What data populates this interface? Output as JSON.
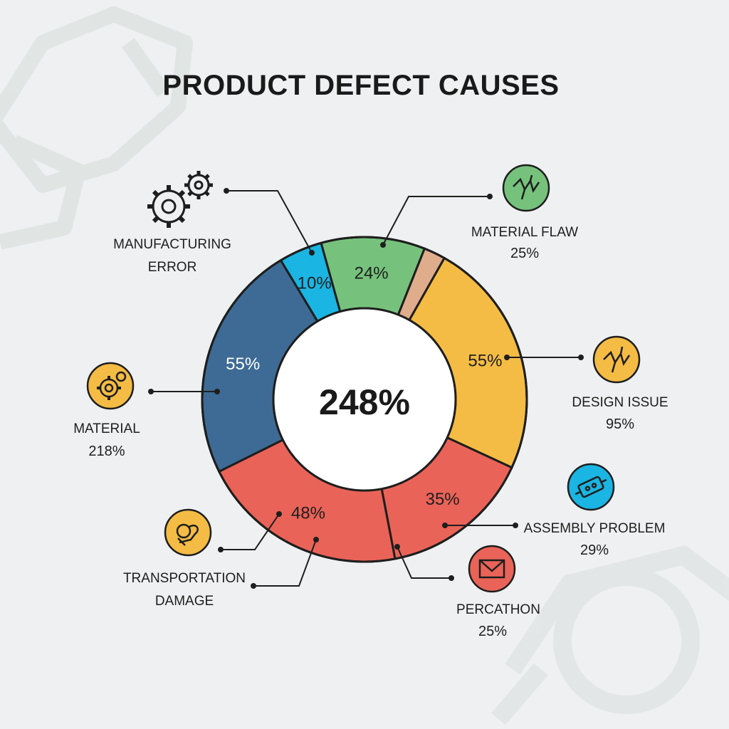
{
  "chart_data": {
    "type": "pie",
    "title": "PRODUCT DEFECT CAUSES",
    "center_label": "248%",
    "slices": [
      {
        "label": "24%",
        "value": 24,
        "color": "#76c27d"
      },
      {
        "label": "",
        "value": 5,
        "color": "#dfad8c"
      },
      {
        "label": "55%",
        "value": 55,
        "color": "#f4bc44"
      },
      {
        "label": "35%",
        "value": 35,
        "color": "#ea6358"
      },
      {
        "label": "48%",
        "value": 48,
        "color": "#ea6358"
      },
      {
        "label": "55%",
        "value": 55,
        "color": "#3e6b95"
      },
      {
        "label": "10%",
        "value": 10,
        "color": "#1ab5e2"
      }
    ],
    "callouts": [
      {
        "name": "MANUFACTURING ERROR",
        "lines": [
          "MANUFACTURING",
          "ERROR"
        ],
        "value": "",
        "icon": "gears-icon"
      },
      {
        "name": "MATERIAL FLAW",
        "lines": [
          "MATERIAL FLAW"
        ],
        "value": "25%",
        "icon": "crack-icon",
        "color": "#76c27d"
      },
      {
        "name": "DESIGN ISSUE",
        "lines": [
          "DESIGN ISSUE"
        ],
        "value": "95%",
        "icon": "crack-icon",
        "color": "#f4bc44"
      },
      {
        "name": "MATERIAL",
        "lines": [
          "MATERIAL"
        ],
        "value": "218%",
        "icon": "gear-icon",
        "color": "#f4bc44"
      },
      {
        "name": "ASSEMBLY PROBLEM",
        "lines": [
          "ASSEMBLY PROBLEM"
        ],
        "value": "29%",
        "icon": "assembly-icon",
        "color": "#1ab5e2"
      },
      {
        "name": "TRANSPORTATION DAMAGE",
        "lines": [
          "TRANSPORTATION",
          "DAMAGE"
        ],
        "value": "",
        "icon": "damage-icon",
        "color": "#f4bc44"
      },
      {
        "name": "PERCATHON",
        "lines": [
          "PERCATHON"
        ],
        "value": "25%",
        "icon": "envelope-icon",
        "color": "#ea6358"
      }
    ]
  }
}
